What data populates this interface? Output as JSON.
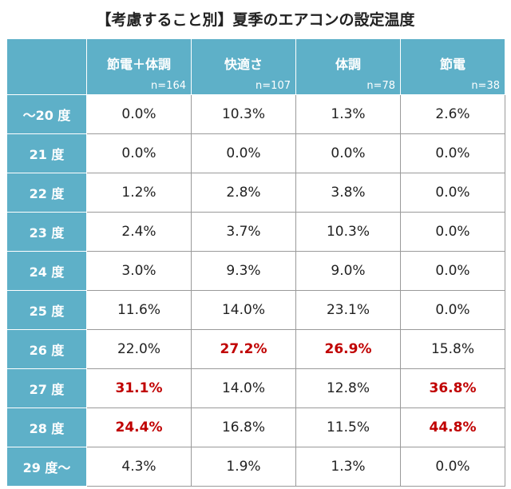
{
  "header": {
    "title": "【考慮すること別】夏季のエアコンの設定温度"
  },
  "table": {
    "columns": [
      {
        "label": "節電＋体調",
        "n": "n=164"
      },
      {
        "label": "快適さ",
        "n": "n=107"
      },
      {
        "label": "体調",
        "n": "n=78"
      },
      {
        "label": "節電",
        "n": "n=38"
      }
    ],
    "rows": [
      {
        "label": "～20 度",
        "cells": [
          "0.0%",
          "10.3%",
          "1.3%",
          "2.6%"
        ],
        "emphasized": []
      },
      {
        "label": "21 度",
        "cells": [
          "0.0%",
          "0.0%",
          "0.0%",
          "0.0%"
        ],
        "emphasized": []
      },
      {
        "label": "22 度",
        "cells": [
          "1.2%",
          "2.8%",
          "3.8%",
          "0.0%"
        ],
        "emphasized": []
      },
      {
        "label": "23 度",
        "cells": [
          "2.4%",
          "3.7%",
          "10.3%",
          "0.0%"
        ],
        "emphasized": []
      },
      {
        "label": "24 度",
        "cells": [
          "3.0%",
          "9.3%",
          "9.0%",
          "0.0%"
        ],
        "emphasized": []
      },
      {
        "label": "25 度",
        "cells": [
          "11.6%",
          "14.0%",
          "23.1%",
          "0.0%"
        ],
        "emphasized": []
      },
      {
        "label": "26 度",
        "cells": [
          "22.0%",
          "27.2%",
          "26.9%",
          "15.8%"
        ],
        "emphasized": [
          1,
          2
        ]
      },
      {
        "label": "27 度",
        "cells": [
          "31.1%",
          "14.0%",
          "12.8%",
          "36.8%"
        ],
        "emphasized": [
          0,
          3
        ]
      },
      {
        "label": "28 度",
        "cells": [
          "24.4%",
          "16.8%",
          "11.5%",
          "44.8%"
        ],
        "emphasized": [
          0,
          3
        ]
      },
      {
        "label": "29 度～",
        "cells": [
          "4.3%",
          "1.9%",
          "1.3%",
          "0.0%"
        ],
        "emphasized": []
      }
    ]
  }
}
